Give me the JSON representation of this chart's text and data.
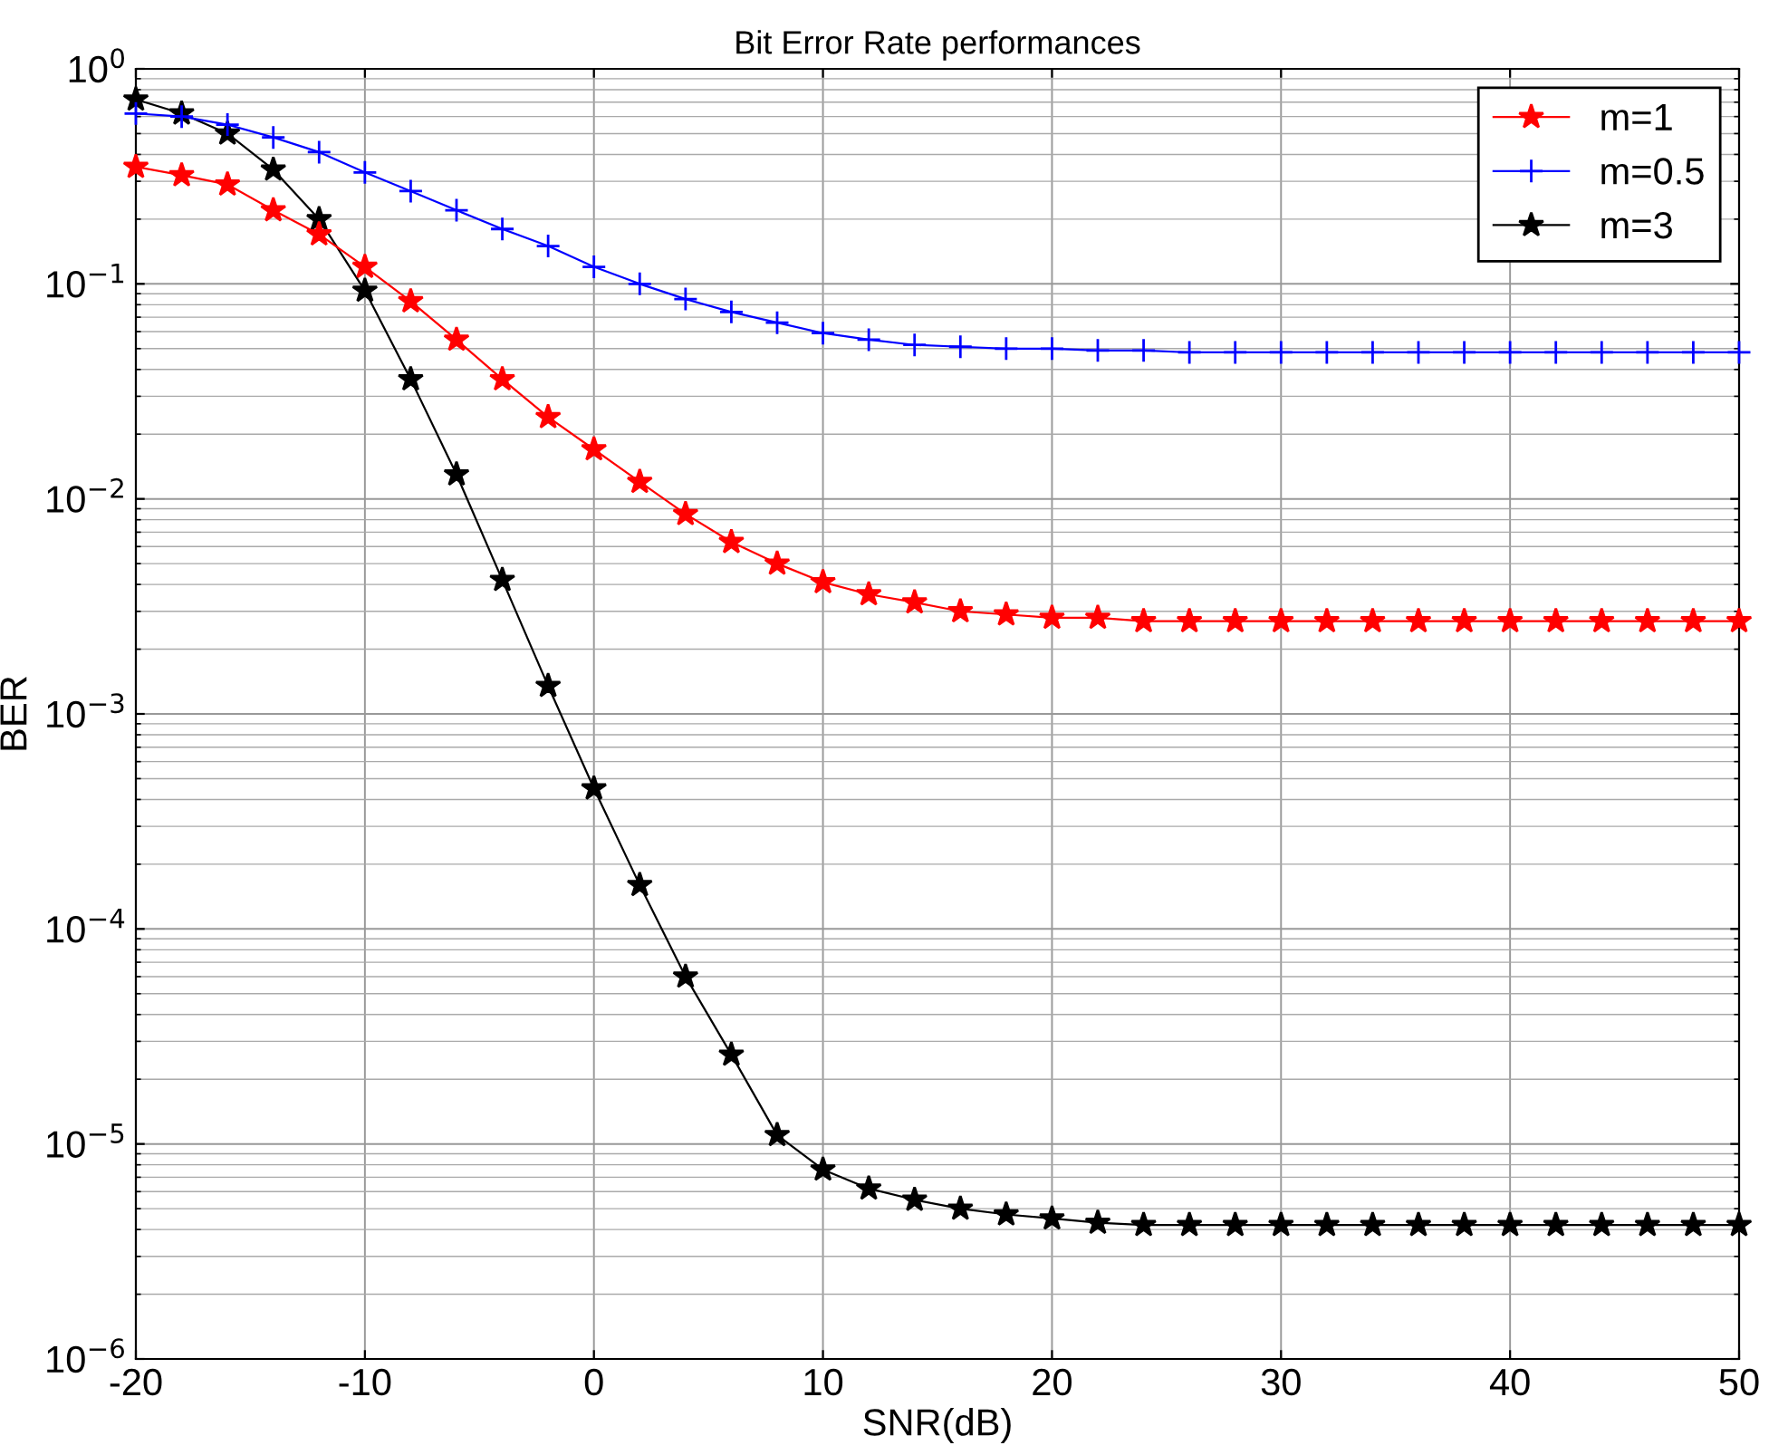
{
  "chart_data": {
    "type": "line",
    "title": "Bit Error Rate performances",
    "xlabel": "SNR(dB)",
    "ylabel": "BER",
    "x": [
      -20,
      -18,
      -16,
      -14,
      -12,
      -10,
      -8,
      -6,
      -4,
      -2,
      0,
      2,
      4,
      6,
      8,
      10,
      12,
      14,
      16,
      18,
      20,
      22,
      24,
      26,
      28,
      30,
      32,
      34,
      36,
      38,
      40,
      42,
      44,
      46,
      48,
      50
    ],
    "series": [
      {
        "name": "m=1",
        "color": "#ff0000",
        "marker": "star",
        "values": [
          0.35,
          0.32,
          0.29,
          0.22,
          0.17,
          0.12,
          0.083,
          0.055,
          0.036,
          0.024,
          0.017,
          0.012,
          0.0085,
          0.0063,
          0.005,
          0.0041,
          0.0036,
          0.0033,
          0.003,
          0.0029,
          0.0028,
          0.0028,
          0.0027,
          0.0027,
          0.0027,
          0.0027,
          0.0027,
          0.0027,
          0.0027,
          0.0027,
          0.0027,
          0.0027,
          0.0027,
          0.0027,
          0.0027,
          0.0027
        ]
      },
      {
        "name": "m=0.5",
        "color": "#0000ff",
        "marker": "cross",
        "values": [
          0.62,
          0.6,
          0.55,
          0.48,
          0.41,
          0.33,
          0.27,
          0.22,
          0.18,
          0.15,
          0.12,
          0.1,
          0.085,
          0.074,
          0.066,
          0.059,
          0.055,
          0.052,
          0.051,
          0.05,
          0.05,
          0.049,
          0.049,
          0.048,
          0.048,
          0.048,
          0.048,
          0.048,
          0.048,
          0.048,
          0.048,
          0.048,
          0.048,
          0.048,
          0.048,
          0.048
        ]
      },
      {
        "name": "m=3",
        "color": "#000000",
        "marker": "star",
        "values": [
          0.72,
          0.62,
          0.5,
          0.34,
          0.2,
          0.093,
          0.036,
          0.013,
          0.0042,
          0.00135,
          0.00045,
          0.00016,
          6e-05,
          2.6e-05,
          1.1e-05,
          7.6e-06,
          6.2e-06,
          5.5e-06,
          5e-06,
          4.7e-06,
          4.5e-06,
          4.3e-06,
          4.2e-06,
          4.2e-06,
          4.2e-06,
          4.2e-06,
          4.2e-06,
          4.2e-06,
          4.2e-06,
          4.2e-06,
          4.2e-06,
          4.2e-06,
          4.2e-06,
          4.2e-06,
          4.2e-06,
          4.2e-06
        ]
      }
    ],
    "log": "y",
    "xlim": [
      -20,
      50
    ],
    "xticks": [
      -20,
      -10,
      0,
      10,
      20,
      30,
      40,
      50
    ],
    "ylim": [
      1e-06,
      1
    ],
    "yticks": [
      {
        "value": 1e-06,
        "label": "10$^{−6}$"
      },
      {
        "value": 1e-05,
        "label": "10$^{−5}$"
      },
      {
        "value": 0.0001,
        "label": "10$^{−4}$"
      },
      {
        "value": 0.001,
        "label": "10$^{−3}$"
      },
      {
        "value": 0.01,
        "label": "10$^{−2}$"
      },
      {
        "value": 0.1,
        "label": "10$^{−1}$"
      },
      {
        "value": 1,
        "label": "10$^{0}$"
      }
    ],
    "grid": true,
    "legend": "top right",
    "line_style": "solid"
  }
}
